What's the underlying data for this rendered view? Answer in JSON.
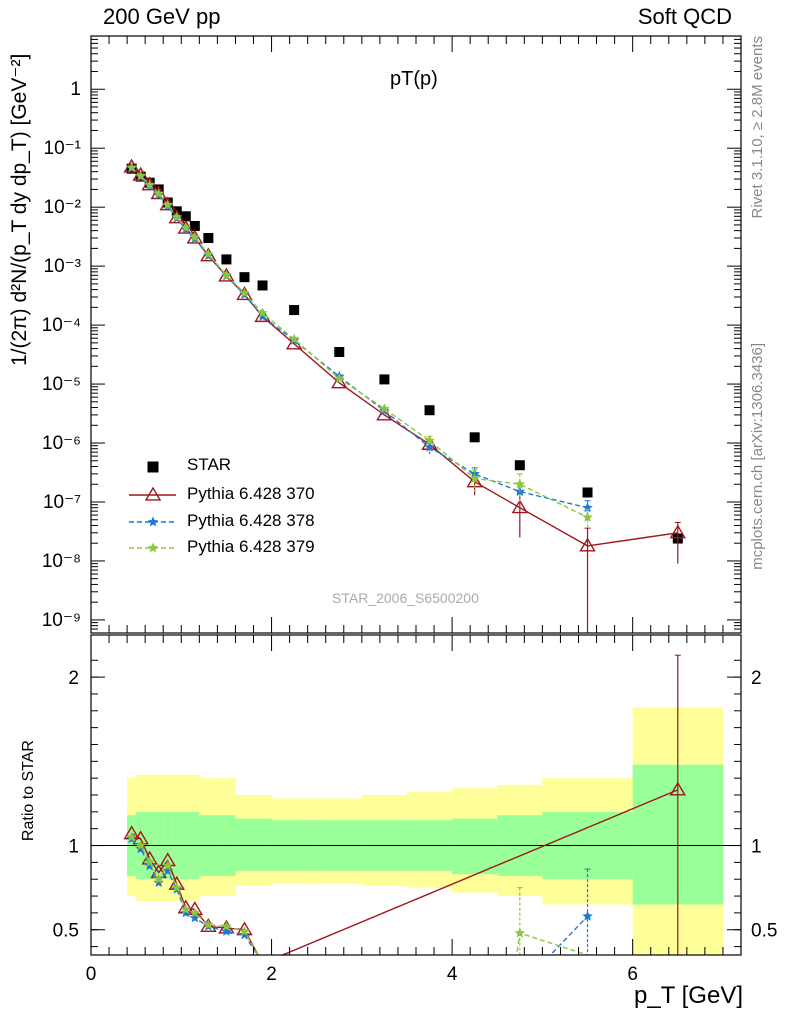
{
  "header": {
    "left": "200 GeV pp",
    "right": "Soft QCD"
  },
  "side_text": {
    "rivet": "Rivet 3.1.10, ≥ 2.8M events",
    "mcplots": "mcplots.cern.ch [arXiv:1306.3436]"
  },
  "watermark": "STAR_2006_S6500200",
  "chart_data": [
    {
      "type": "scatter",
      "title": "pT(p)",
      "ylabel": "1/(2π) d²N/(p_T dy dp_T) [GeV⁻²]",
      "xlim": [
        0,
        7.2
      ],
      "ylim": [
        6e-10,
        8
      ],
      "yscale": "log",
      "ytick_labels": [
        "10⁻⁹",
        "10⁻⁸",
        "10⁻⁷",
        "10⁻⁶",
        "10⁻⁵",
        "10⁻⁴",
        "10⁻³",
        "10⁻²",
        "10⁻¹",
        "1"
      ],
      "legend_position": "lower-left",
      "series": [
        {
          "name": "STAR",
          "color": "#000000",
          "marker": "square",
          "x": [
            0.45,
            0.55,
            0.65,
            0.75,
            0.85,
            0.95,
            1.05,
            1.15,
            1.3,
            1.5,
            1.7,
            1.9,
            2.25,
            2.75,
            3.25,
            3.75,
            4.25,
            4.75,
            5.5,
            6.5
          ],
          "y": [
            0.045,
            0.033,
            0.026,
            0.02,
            0.012,
            0.0085,
            0.007,
            0.0048,
            0.003,
            0.0013,
            0.00065,
            0.00047,
            0.00018,
            3.5e-05,
            1.2e-05,
            3.6e-06,
            1.25e-06,
            4.2e-07,
            1.45e-07,
            2.4e-08
          ]
        },
        {
          "name": "Pythia 6.428 370",
          "color": "#a0141e",
          "marker": "open-triangle",
          "line": "solid",
          "x": [
            0.45,
            0.55,
            0.65,
            0.75,
            0.85,
            0.95,
            1.05,
            1.15,
            1.3,
            1.5,
            1.7,
            1.9,
            2.25,
            2.75,
            3.25,
            3.75,
            4.25,
            4.75,
            5.5,
            6.5
          ],
          "y": [
            0.048,
            0.035,
            0.024,
            0.017,
            0.011,
            0.0066,
            0.0044,
            0.003,
            0.0015,
            0.00068,
            0.00033,
            0.00014,
            4.8e-05,
            1.05e-05,
            3e-06,
            9.5e-07,
            2.2e-07,
            8e-08,
            1.8e-08,
            3e-08
          ],
          "yerr_low": [
            0,
            0,
            0,
            0,
            0,
            0,
            0,
            0,
            0,
            0,
            0,
            0,
            0,
            0,
            0,
            2e-07,
            9e-08,
            5.5e-08,
            1.79e-08,
            2.1e-08
          ],
          "yerr_high": [
            0,
            0,
            0,
            0,
            0,
            0,
            0,
            0,
            0,
            0,
            0,
            0,
            0,
            0,
            0,
            2e-07,
            9e-08,
            6e-08,
            1.8e-08,
            1.5e-08
          ]
        },
        {
          "name": "Pythia 6.428 378",
          "color": "#1f78d4",
          "marker": "star",
          "line": "dashed",
          "x": [
            0.45,
            0.55,
            0.65,
            0.75,
            0.85,
            0.95,
            1.05,
            1.15,
            1.3,
            1.5,
            1.7,
            1.9,
            2.25,
            2.75,
            3.25,
            3.75,
            4.25,
            4.75,
            5.5
          ],
          "y": [
            0.046,
            0.033,
            0.023,
            0.016,
            0.0105,
            0.0065,
            0.0042,
            0.0029,
            0.0015,
            0.00068,
            0.00033,
            0.00014,
            5.5e-05,
            1.35e-05,
            3.5e-06,
            8.5e-07,
            3e-07,
            1.5e-07,
            8e-08
          ],
          "yerr_low": [
            0,
            0,
            0,
            0,
            0,
            0,
            0,
            0,
            0,
            0,
            0,
            0,
            0,
            0,
            0,
            2e-07,
            8e-08,
            0,
            2.5e-08
          ],
          "yerr_high": [
            0,
            0,
            0,
            0,
            0,
            0,
            0,
            0,
            0,
            0,
            0,
            0,
            0,
            0,
            0,
            2e-07,
            8e-08,
            0,
            2.5e-08
          ]
        },
        {
          "name": "Pythia 6.428 379",
          "color": "#8cc63e",
          "marker": "star",
          "line": "dashed",
          "x": [
            0.45,
            0.55,
            0.65,
            0.75,
            0.85,
            0.95,
            1.05,
            1.15,
            1.3,
            1.5,
            1.7,
            1.9,
            2.25,
            2.75,
            3.25,
            3.75,
            4.25,
            4.75,
            5.5
          ],
          "y": [
            0.047,
            0.034,
            0.024,
            0.017,
            0.011,
            0.0068,
            0.0045,
            0.0031,
            0.0016,
            0.0007,
            0.00035,
            0.00016,
            5.8e-05,
            1.25e-05,
            3.8e-06,
            1.1e-06,
            2.5e-07,
            2e-07,
            5.5e-08
          ],
          "yerr_low": [
            0,
            0,
            0,
            0,
            0,
            0,
            0,
            0,
            0,
            0,
            0,
            0,
            0,
            0,
            0,
            2e-07,
            1e-07,
            1e-07,
            2e-08
          ],
          "yerr_high": [
            0,
            0,
            0,
            0,
            0,
            0,
            0,
            0,
            0,
            0,
            0,
            0,
            0,
            0,
            0,
            2e-07,
            1e-07,
            1e-07,
            2e-08
          ]
        }
      ]
    },
    {
      "type": "line",
      "ylabel": "Ratio to STAR",
      "xlabel": "p_T [GeV]",
      "xlim": [
        0,
        7.2
      ],
      "ylim": [
        0.35,
        2.25
      ],
      "xtick_labels": [
        "0",
        "2",
        "4",
        "6"
      ],
      "ytick_labels": [
        "0.5",
        "1",
        "2"
      ],
      "reference_line": 1,
      "bands": {
        "edges": [
          0.4,
          0.5,
          0.6,
          0.7,
          0.8,
          0.9,
          1.0,
          1.1,
          1.2,
          1.4,
          1.6,
          1.8,
          2.0,
          2.5,
          3.0,
          3.5,
          4.0,
          4.5,
          5.0,
          6.0,
          7.0
        ],
        "inner_low": [
          0.82,
          0.8,
          0.8,
          0.8,
          0.8,
          0.8,
          0.8,
          0.8,
          0.82,
          0.82,
          0.85,
          0.85,
          0.85,
          0.85,
          0.85,
          0.85,
          0.83,
          0.82,
          0.8,
          0.65
        ],
        "inner_high": [
          1.18,
          1.2,
          1.2,
          1.2,
          1.2,
          1.2,
          1.2,
          1.2,
          1.18,
          1.18,
          1.16,
          1.16,
          1.15,
          1.15,
          1.15,
          1.15,
          1.16,
          1.18,
          1.2,
          1.48
        ],
        "outer_low": [
          0.7,
          0.67,
          0.67,
          0.67,
          0.67,
          0.67,
          0.67,
          0.67,
          0.7,
          0.7,
          0.76,
          0.76,
          0.77,
          0.77,
          0.76,
          0.75,
          0.72,
          0.7,
          0.65,
          0.35
        ],
        "outer_high": [
          1.4,
          1.42,
          1.42,
          1.42,
          1.42,
          1.42,
          1.42,
          1.42,
          1.4,
          1.4,
          1.3,
          1.3,
          1.28,
          1.28,
          1.3,
          1.32,
          1.34,
          1.36,
          1.4,
          1.82
        ],
        "inner_color": "#99ff99",
        "outer_color": "#ffff99"
      },
      "series": [
        {
          "name": "Pythia 6.428 370",
          "color": "#a0141e",
          "x": [
            0.45,
            0.55,
            0.65,
            0.75,
            0.85,
            0.95,
            1.05,
            1.15,
            1.3,
            1.5,
            1.7,
            1.9,
            6.5
          ],
          "y": [
            1.07,
            1.04,
            0.92,
            0.84,
            0.91,
            0.77,
            0.63,
            0.62,
            0.52,
            0.51,
            0.5,
            0.3,
            1.33
          ],
          "yerr_low": [
            0,
            0,
            0,
            0,
            0,
            0,
            0,
            0,
            0,
            0,
            0,
            0,
            1.0
          ],
          "yerr_high": [
            0,
            0,
            0,
            0,
            0,
            0,
            0,
            0,
            0,
            0,
            0,
            0,
            0.8
          ]
        },
        {
          "name": "Pythia 6.428 378",
          "color": "#1f78d4",
          "x": [
            0.45,
            0.55,
            0.65,
            0.75,
            0.85,
            0.95,
            1.05,
            1.15,
            1.3,
            1.5,
            1.7,
            1.9,
            5.0,
            5.5
          ],
          "y": [
            1.04,
            0.98,
            0.88,
            0.78,
            0.85,
            0.74,
            0.6,
            0.57,
            0.52,
            0.49,
            0.47,
            0.3,
            0.3,
            0.58
          ],
          "yerr_low": [
            0,
            0,
            0,
            0,
            0,
            0,
            0,
            0,
            0,
            0,
            0,
            0,
            0,
            0.25
          ],
          "yerr_high": [
            0,
            0,
            0,
            0,
            0,
            0,
            0,
            0,
            0,
            0,
            0,
            0,
            0,
            0.28
          ]
        },
        {
          "name": "Pythia 6.428 379",
          "color": "#8cc63e",
          "x": [
            0.45,
            0.55,
            0.65,
            0.75,
            0.85,
            0.95,
            1.05,
            1.15,
            1.3,
            1.5,
            1.7,
            1.9,
            4.7,
            4.75,
            5.5
          ],
          "y": [
            1.05,
            1.0,
            0.9,
            0.8,
            0.88,
            0.75,
            0.62,
            0.6,
            0.53,
            0.52,
            0.49,
            0.3,
            0.3,
            0.48,
            0.35
          ],
          "yerr_low": [
            0,
            0,
            0,
            0,
            0,
            0,
            0,
            0,
            0,
            0,
            0,
            0,
            0,
            0.15,
            0
          ],
          "yerr_high": [
            0,
            0,
            0,
            0,
            0,
            0,
            0,
            0,
            0,
            0,
            0,
            0,
            0,
            0.27,
            0
          ]
        }
      ]
    }
  ]
}
